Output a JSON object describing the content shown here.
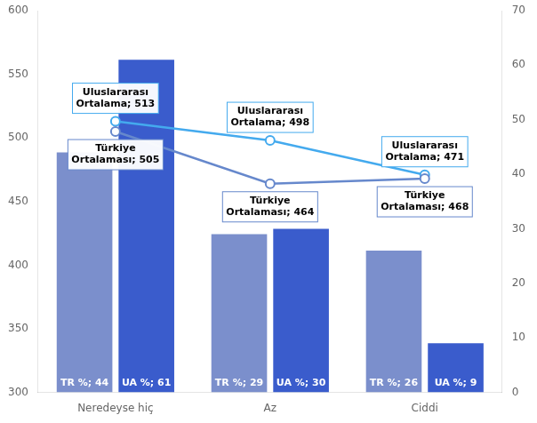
{
  "chart_data": {
    "type": "bar",
    "categories": [
      "Neredeyse hiç",
      "Az",
      "Ciddi"
    ],
    "series": [
      {
        "type": "bar",
        "color": "#7b8fcc",
        "axis": "y2",
        "values": [
          44,
          29,
          26
        ],
        "value_labels": [
          "TR %; 44",
          "TR %; 29",
          "TR %; 26"
        ]
      },
      {
        "type": "bar",
        "color": "#3a5ccc",
        "axis": "y2",
        "values": [
          61,
          30,
          9
        ],
        "value_labels": [
          "UA %; 61",
          "UA %; 30",
          "UA %; 9"
        ]
      },
      {
        "type": "line",
        "color": "#6688cc",
        "marker": "circle",
        "values": [
          505,
          464,
          468
        ],
        "value_labels": [
          "Türkiye\nOrtalaması; 505",
          "Türkiye\nOrtalaması; 464",
          "Türkiye\nOrtalaması; 468"
        ]
      },
      {
        "type": "line",
        "color": "#44aaee",
        "marker": "circle",
        "values": [
          513,
          498,
          471
        ],
        "value_labels": [
          "Uluslararası\nOrtalama; 513",
          "Uluslararası\nOrtalama; 498",
          "Uluslararası\nOrtalama; 471"
        ]
      }
    ],
    "ylim": [
      300,
      600
    ],
    "yticks": [
      300,
      350,
      400,
      450,
      500,
      550,
      600
    ],
    "y2lim": [
      0,
      70
    ],
    "y2ticks": [
      0,
      10,
      20,
      30,
      40,
      50,
      60,
      70
    ],
    "grid": false,
    "data_labels": true
  }
}
